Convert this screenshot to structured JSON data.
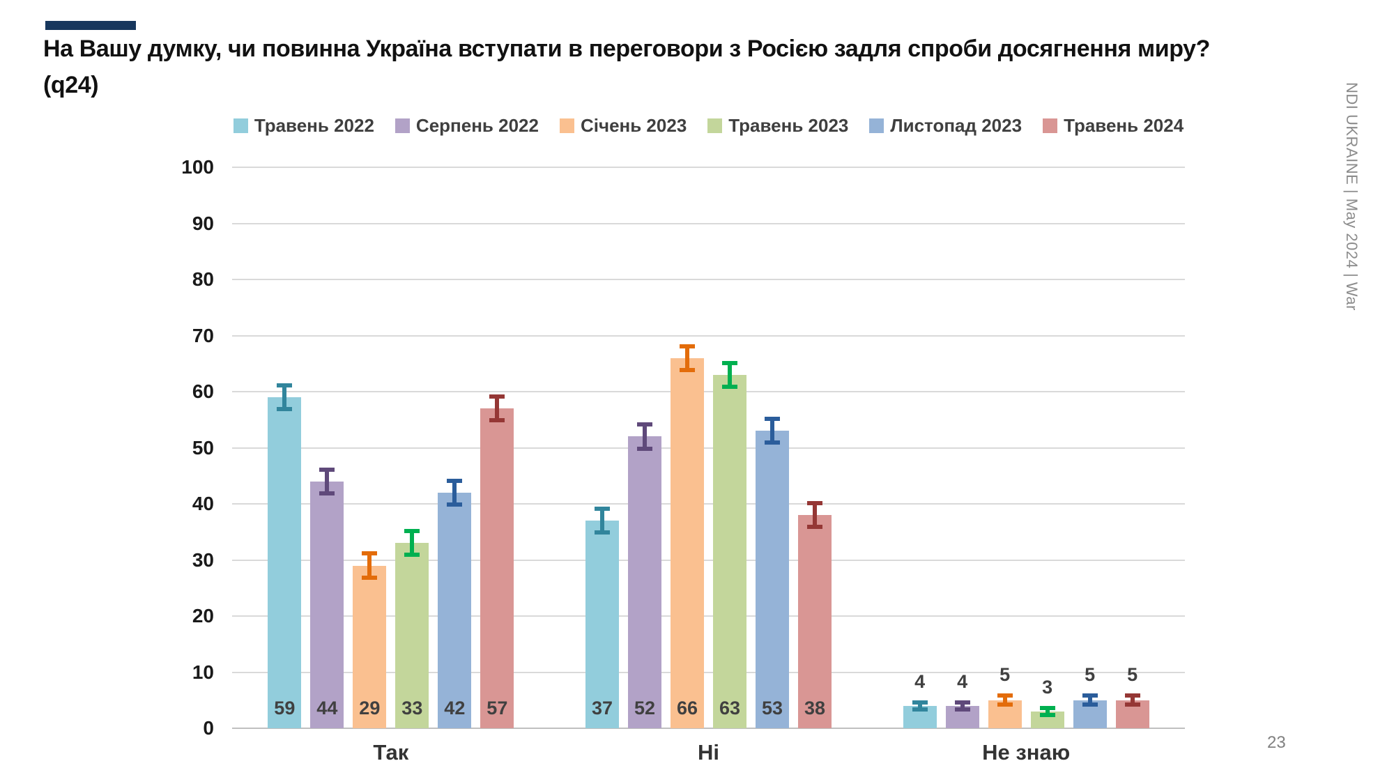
{
  "slide": {
    "title_line1": "На Вашу думку, чи повинна Україна вступати в переговори з Росією задля спроби досягнення миру?",
    "title_line2": "(q24)",
    "accent_color": "#17375D",
    "side_text": "NDI UKRAINE | May 2024 | War",
    "page_number": "23"
  },
  "chart_data": {
    "type": "bar",
    "title": "",
    "xlabel": "",
    "ylabel": "",
    "categories": [
      "Так",
      "Ні",
      "Не знаю"
    ],
    "series": [
      {
        "name": "Травень 2022",
        "color": "#92CDDC",
        "error_color": "#31859C",
        "values": [
          59,
          37,
          4
        ],
        "errors": [
          2.5,
          2.5,
          1.0
        ]
      },
      {
        "name": "Серпень 2022",
        "color": "#B2A2C7",
        "error_color": "#5F497A",
        "values": [
          44,
          52,
          4
        ],
        "errors": [
          2.5,
          2.5,
          1.0
        ]
      },
      {
        "name": "Січень 2023",
        "color": "#FAC090",
        "error_color": "#E36C0A",
        "values": [
          29,
          66,
          5
        ],
        "errors": [
          2.5,
          2.5,
          1.2
        ]
      },
      {
        "name": "Травень 2023",
        "color": "#C3D69B",
        "error_color": "#00B050",
        "values": [
          33,
          63,
          3
        ],
        "errors": [
          2.5,
          2.5,
          1.0
        ]
      },
      {
        "name": "Листопад 2023",
        "color": "#95B3D7",
        "error_color": "#2B5D9B",
        "values": [
          42,
          53,
          5
        ],
        "errors": [
          2.5,
          2.5,
          1.2
        ]
      },
      {
        "name": "Травень 2024",
        "color": "#D99694",
        "error_color": "#953735",
        "values": [
          57,
          38,
          5
        ],
        "errors": [
          2.5,
          2.5,
          1.2
        ]
      }
    ],
    "ylim": [
      0,
      100
    ],
    "yticks": [
      0,
      10,
      20,
      30,
      40,
      50,
      60,
      70,
      80,
      90,
      100
    ],
    "grid": true,
    "gridline_color": "#D9D9D9",
    "axis_line_color": "#BFBFBF",
    "legend_position": "top",
    "value_label_color": "#404040",
    "small_bar_label_threshold": 10
  }
}
